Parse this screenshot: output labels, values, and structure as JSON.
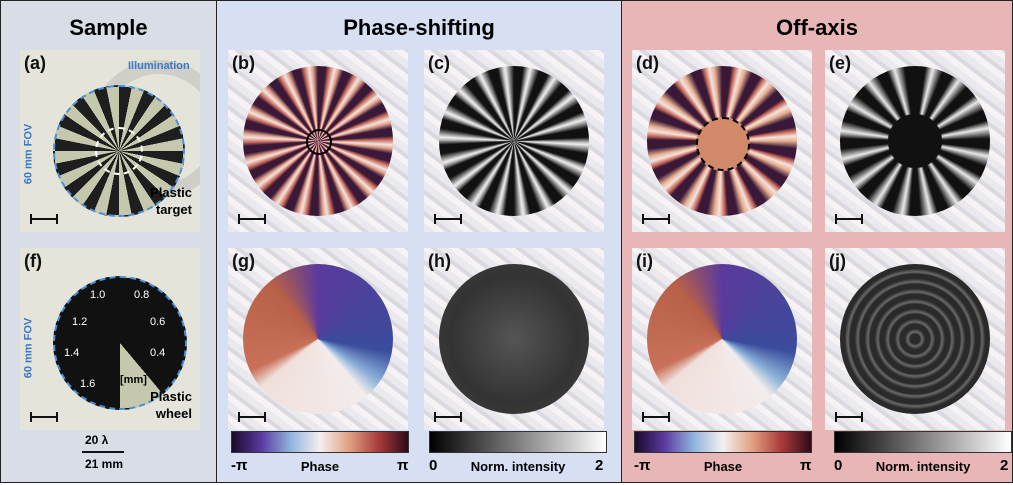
{
  "columns": [
    {
      "title": "Sample"
    },
    {
      "title": "Phase-shifting"
    },
    {
      "title": "Off-axis"
    }
  ],
  "panels": [
    {
      "label": "(a)"
    },
    {
      "label": "(b)"
    },
    {
      "label": "(c)"
    },
    {
      "label": "(d)"
    },
    {
      "label": "(e)"
    },
    {
      "label": "(f)"
    },
    {
      "label": "(g)"
    },
    {
      "label": "(h)"
    },
    {
      "label": "(i)"
    },
    {
      "label": "(j)"
    }
  ],
  "sample_top": {
    "annotation": "Illumination",
    "fov": "60 mm FOV",
    "caption": [
      "Plastic",
      "target"
    ]
  },
  "sample_bottom": {
    "fov": "60 mm FOV",
    "caption": [
      "Plastic",
      "wheel"
    ],
    "wheel_labels": [
      "1.0",
      "0.8",
      "1.2",
      "0.6",
      "1.4",
      "0.4",
      "1.6"
    ],
    "unit": "[mm]"
  },
  "scale": {
    "top": "20 λ",
    "bottom": "21 mm"
  },
  "colorbars": [
    {
      "min": "-π",
      "label": "Phase",
      "max": "π"
    },
    {
      "min": "0",
      "label": "Norm. intensity",
      "max": "2"
    },
    {
      "min": "-π",
      "label": "Phase",
      "max": "π"
    },
    {
      "min": "0",
      "label": "Norm. intensity",
      "max": "2"
    }
  ]
}
